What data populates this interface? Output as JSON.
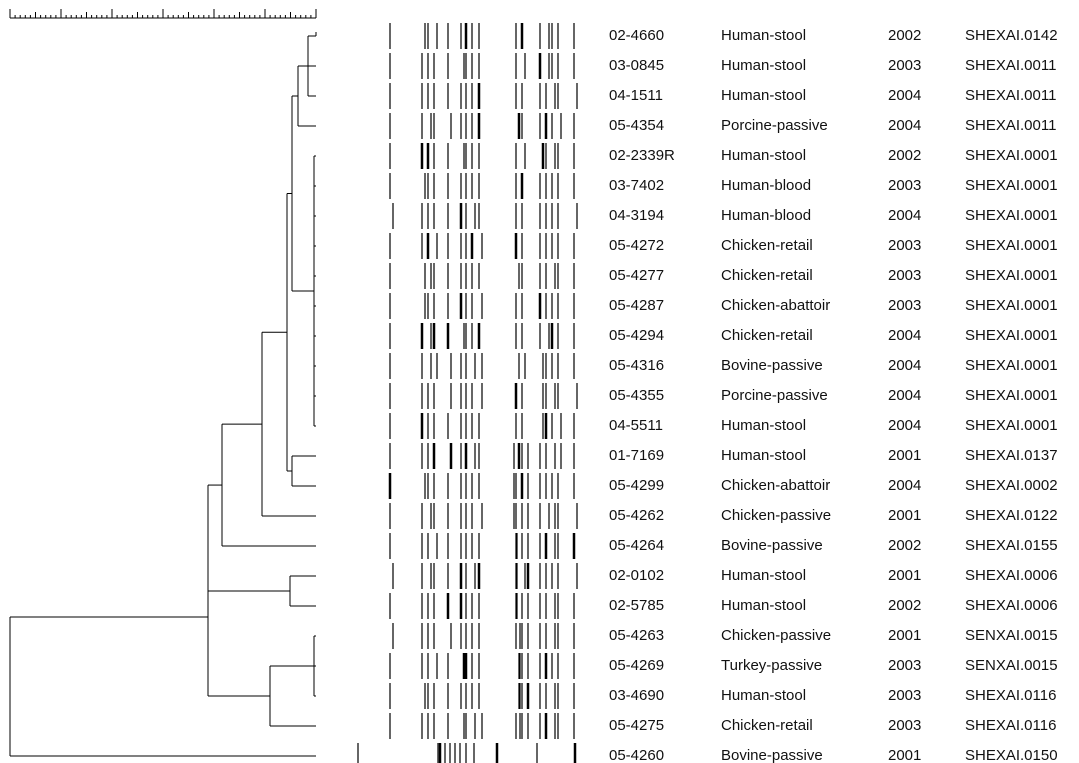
{
  "table": {
    "rows": [
      [
        "02-4660",
        "Human-stool",
        "2002",
        "SHEXAI.0142"
      ],
      [
        "03-0845",
        "Human-stool",
        "2003",
        "SHEXAI.0011"
      ],
      [
        "04-1511",
        "Human-stool",
        "2004",
        "SHEXAI.0011"
      ],
      [
        "05-4354",
        "Porcine-passive",
        "2004",
        "SHEXAI.0011"
      ],
      [
        "02-2339R",
        "Human-stool",
        "2002",
        "SHEXAI.0001"
      ],
      [
        "03-7402",
        "Human-blood",
        "2003",
        "SHEXAI.0001"
      ],
      [
        "04-3194",
        "Human-blood",
        "2004",
        "SHEXAI.0001"
      ],
      [
        "05-4272",
        "Chicken-retail",
        "2003",
        "SHEXAI.0001"
      ],
      [
        "05-4277",
        "Chicken-retail",
        "2003",
        "SHEXAI.0001"
      ],
      [
        "05-4287",
        "Chicken-abattoir",
        "2003",
        "SHEXAI.0001"
      ],
      [
        "05-4294",
        "Chicken-retail",
        "2004",
        "SHEXAI.0001"
      ],
      [
        "05-4316",
        "Bovine-passive",
        "2004",
        "SHEXAI.0001"
      ],
      [
        "05-4355",
        "Porcine-passive",
        "2004",
        "SHEXAI.0001"
      ],
      [
        "04-5511",
        "Human-stool",
        "2004",
        "SHEXAI.0001"
      ],
      [
        "01-7169",
        "Human-stool",
        "2001",
        "SHEXAI.0137"
      ],
      [
        "05-4299",
        "Chicken-abattoir",
        "2004",
        "SHEXAI.0002"
      ],
      [
        "05-4262",
        "Chicken-passive",
        "2001",
        "SHEXAI.0122"
      ],
      [
        "05-4264",
        "Bovine-passive",
        "2002",
        "SHEXAI.0155"
      ],
      [
        "02-0102",
        "Human-stool",
        "2001",
        "SHEXAI.0006"
      ],
      [
        "02-5785",
        "Human-stool",
        "2002",
        "SHEXAI.0006"
      ],
      [
        "05-4263",
        "Chicken-passive",
        "2001",
        "SENXAI.0015"
      ],
      [
        "05-4269",
        "Turkey-passive",
        "2003",
        "SENXAI.0015"
      ],
      [
        "03-4690",
        "Human-stool",
        "2003",
        "SHEXAI.0116"
      ],
      [
        "05-4275",
        "Chicken-retail",
        "2003",
        "SHEXAI.0116"
      ],
      [
        "05-4260",
        "Bovine-passive",
        "2001",
        "SHEXAI.0150"
      ]
    ]
  }
}
